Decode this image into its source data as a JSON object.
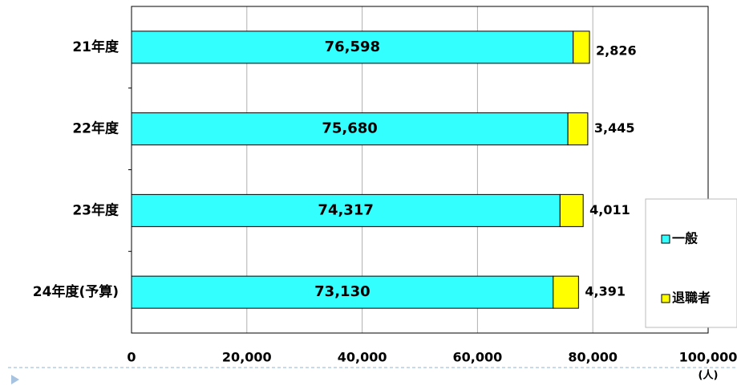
{
  "chart_data": {
    "type": "stacked_barh",
    "categories": [
      "21年度",
      "22年度",
      "23年度",
      "24年度(予算)"
    ],
    "series": [
      {
        "name": "一般",
        "color": "#33ffff",
        "values": [
          76598,
          75680,
          74317,
          73130
        ],
        "value_labels": [
          "76,598",
          "75,680",
          "74,317",
          "73,130"
        ]
      },
      {
        "name": "退職者",
        "color": "#ffff00",
        "values": [
          2826,
          3445,
          4011,
          4391
        ],
        "value_labels": [
          "2,826",
          "3,445",
          "4,011",
          "4,391"
        ]
      }
    ],
    "xlim": [
      0,
      100000
    ],
    "xticks": [
      0,
      {
        "value": 20000,
        "label": "20,000"
      },
      {
        "value": 40000,
        "label": "40,000"
      },
      {
        "value": 60000,
        "label": "60,000"
      },
      {
        "value": 80000,
        "label": "80,000"
      },
      {
        "value": 100000,
        "label": "100,000"
      }
    ],
    "x_unit": "(人)",
    "grid": true,
    "legend": "right"
  }
}
